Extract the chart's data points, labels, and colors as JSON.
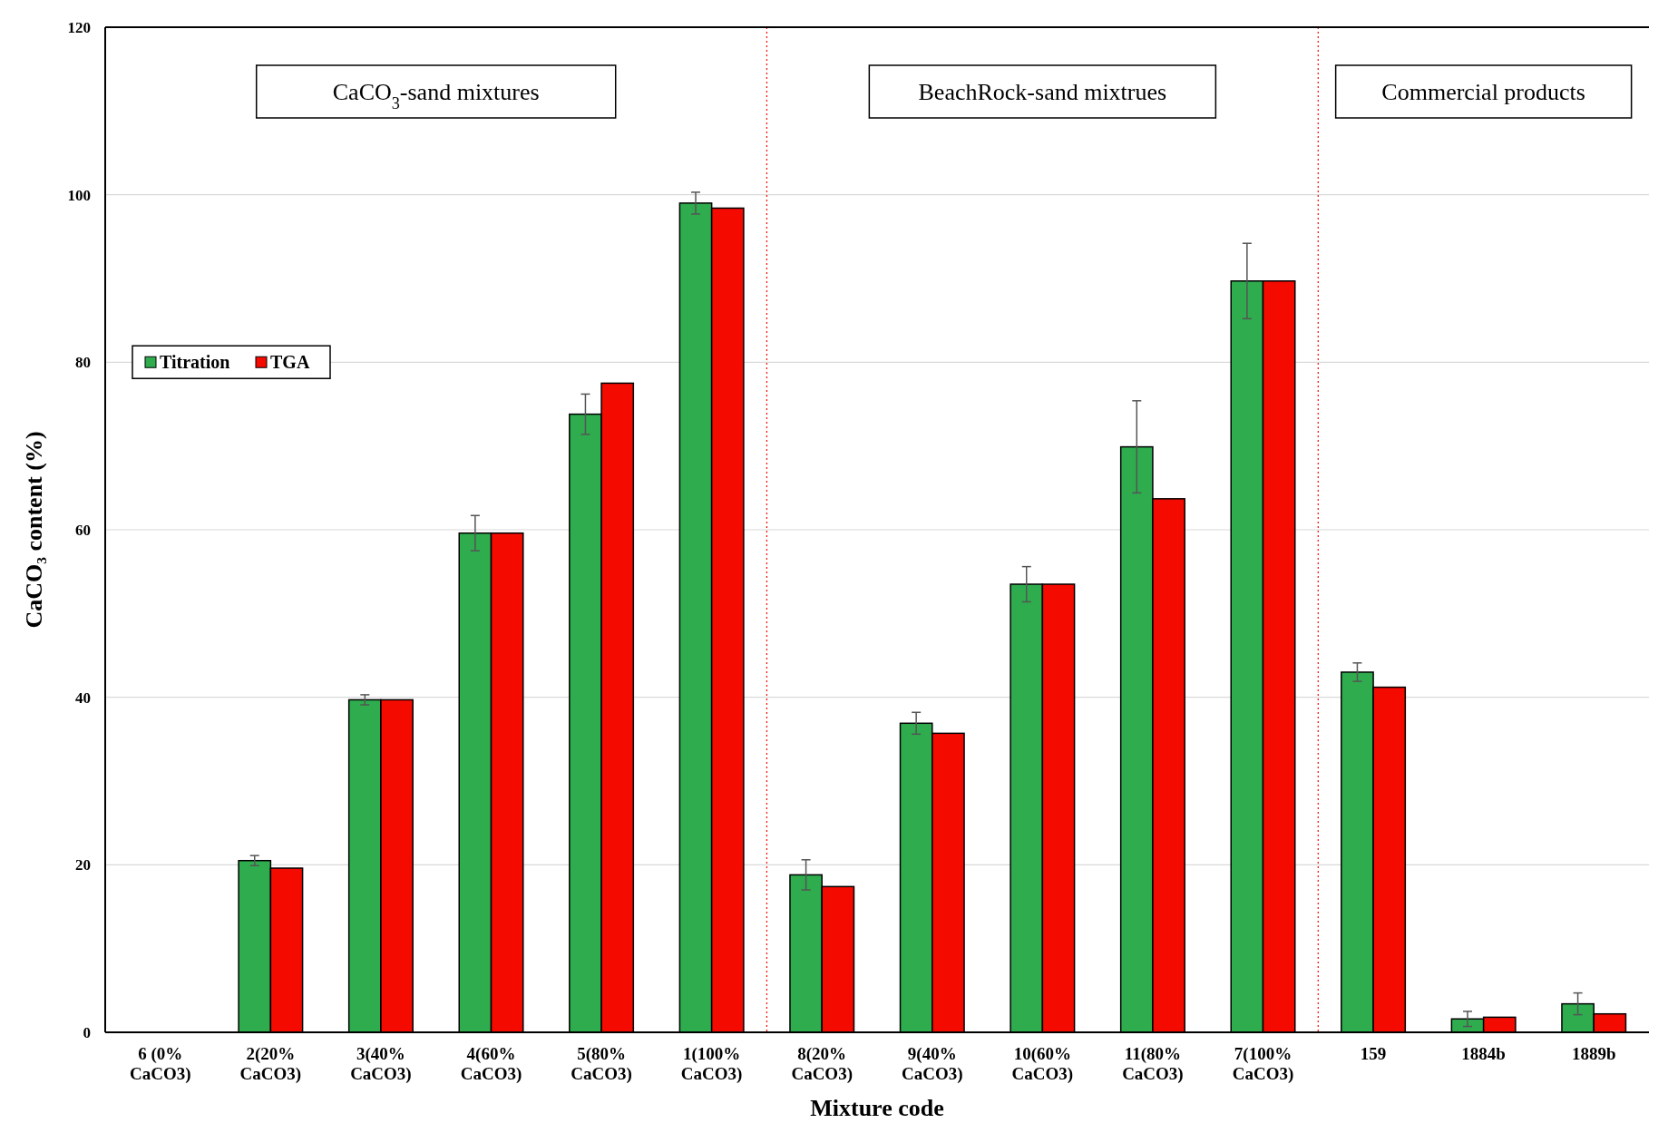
{
  "chart_data": {
    "type": "bar",
    "xlabel": "Mixture code",
    "ylabel": "CaCO₃ content (%)",
    "categories": [
      "6 (0% CaCO3)",
      "2(20% CaCO3)",
      "3(40% CaCO3)",
      "4(60% CaCO3)",
      "5(80% CaCO3)",
      "1(100% CaCO3)",
      "8(20% CaCO3)",
      "9(40% CaCO3)",
      "10(60% CaCO3)",
      "11(80% CaCO3)",
      "7(100% CaCO3)",
      "159",
      "1884b",
      "1889b"
    ],
    "series": [
      {
        "name": "Titration",
        "color": "#2eac4e",
        "values": [
          0,
          20.5,
          39.7,
          59.6,
          73.8,
          99.0,
          18.8,
          36.9,
          53.5,
          69.9,
          89.7,
          43.0,
          1.6,
          3.4
        ],
        "errors": [
          null,
          0.6,
          0.6,
          2.1,
          2.4,
          1.3,
          1.8,
          1.3,
          2.1,
          5.5,
          4.5,
          1.1,
          0.9,
          1.3
        ]
      },
      {
        "name": "TGA",
        "color": "#f50a00",
        "values": [
          0,
          19.6,
          39.7,
          59.6,
          77.5,
          98.4,
          17.4,
          35.7,
          53.5,
          63.7,
          89.7,
          41.2,
          1.8,
          2.2
        ]
      }
    ],
    "ylim": [
      0,
      120
    ],
    "yticks": [
      0,
      20,
      40,
      60,
      80,
      100,
      120
    ],
    "grid": "y",
    "legend": "top left",
    "annotations": [
      "CaCO$_{3}$-sand mixtures",
      "BeachRock-sand mixtrues",
      "Commercial products"
    ]
  }
}
